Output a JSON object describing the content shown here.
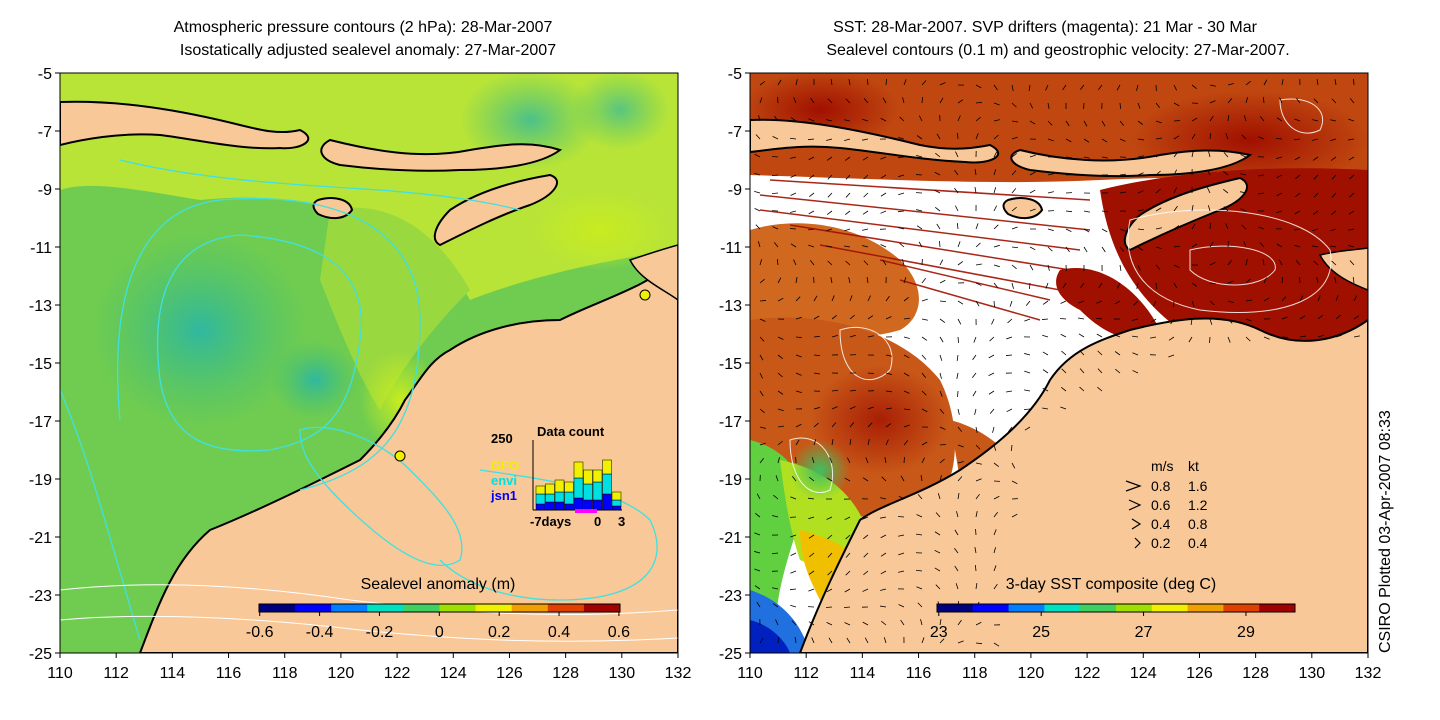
{
  "left_panel": {
    "title_line1": "Atmospheric pressure contours (2 hPa): 28-Mar-2007",
    "title_line2": "Isostatically adjusted sealevel anomaly: 27-Mar-2007",
    "colorbar_title": "Sealevel anomaly (m)",
    "colorbar_ticks": [
      "-0.6",
      "-0.4",
      "-0.2",
      "0",
      "0.2",
      "0.4",
      "0.6"
    ],
    "colorbar_colors": [
      "#00007f",
      "#0000ff",
      "#0080ff",
      "#00e0c0",
      "#40d060",
      "#a0e000",
      "#f0f000",
      "#f0a000",
      "#e04000",
      "#a00000"
    ],
    "inset": {
      "max_label": "250",
      "title": "Data count",
      "legend": [
        {
          "label": "GFO",
          "color": "#f0f000"
        },
        {
          "label": "envi",
          "color": "#00e0e0"
        },
        {
          "label": "jsn1",
          "color": "#0000ff"
        }
      ],
      "x_labels": [
        "-7days",
        "0",
        "3"
      ]
    }
  },
  "right_panel": {
    "title_line1": "SST: 28-Mar-2007. SVP drifters (magenta): 21 Mar - 30 Mar",
    "title_line2": "Sealevel contours (0.1 m) and geostrophic velocity: 27-Mar-2007.",
    "colorbar_title": "3-day SST composite (deg C)",
    "colorbar_ticks": [
      "23",
      "25",
      "27",
      "29"
    ],
    "colorbar_colors": [
      "#00007f",
      "#0000ff",
      "#0080ff",
      "#00e0c0",
      "#40d060",
      "#a0e000",
      "#f0f000",
      "#f0a000",
      "#e04000",
      "#a00000"
    ],
    "velocity_legend": {
      "header": [
        "m/s",
        "kt"
      ],
      "rows": [
        [
          "0.8",
          "1.6"
        ],
        [
          "0.6",
          "1.2"
        ],
        [
          "0.4",
          "0.8"
        ],
        [
          "0.2",
          "0.4"
        ]
      ]
    }
  },
  "axes": {
    "x_ticks": [
      "110",
      "112",
      "114",
      "116",
      "118",
      "120",
      "122",
      "124",
      "126",
      "128",
      "130",
      "132"
    ],
    "y_ticks": [
      "-5",
      "-7",
      "-9",
      "-11",
      "-13",
      "-15",
      "-17",
      "-19",
      "-21",
      "-23",
      "-25"
    ]
  },
  "credit": "CSIRO Plotted 03-Apr-2007 08:33",
  "colors": {
    "land": "#f8c898",
    "ocean_green": "#60c860",
    "ocean_yellowgreen": "#b0e040",
    "sst_red": "#a01000",
    "sst_orange": "#d05010"
  }
}
